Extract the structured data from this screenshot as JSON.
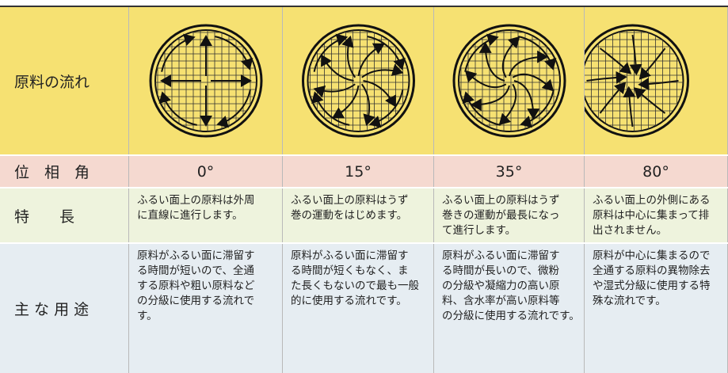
{
  "table": {
    "flow": {
      "label": "原料の流れ"
    },
    "phase": {
      "label": "位　相　角",
      "values": [
        "0°",
        "15°",
        "35°",
        "80°"
      ]
    },
    "feature": {
      "label": "特　　長",
      "values": [
        [
          "ふるい面上の原料は外周",
          "に直線に進行します。"
        ],
        [
          "ふるい面上の原料はうず",
          "巻の運動をはじめます。"
        ],
        [
          "ふるい面上の原料はうず",
          "巻きの運動が最長になっ",
          "て進行します。"
        ],
        [
          "ふるい面上の外側にある",
          "原料は中心に集まって排",
          "出されません。"
        ]
      ]
    },
    "usage": {
      "label": "主 な 用 途",
      "values": [
        [
          "原料がふるい面に滞留す",
          "る時間が短いので、全通",
          "する原料や粗い原料など",
          "の分級に使用する流れで",
          "す。"
        ],
        [
          "原料がふるい面に滞留す",
          "る時間が短くもなく、ま",
          "た長くもないので最も一般",
          "的に使用する流れです。"
        ],
        [
          "原料がふるい面に滞留す",
          "る時間が長いので、微粉",
          "の分級や凝縮力の高い原",
          "料、含水率が高い原料等",
          "の分級に使用する流れです。"
        ],
        [
          "原料が中心に集まるので",
          "全通する原料の異物除去",
          "や湿式分級に使用する特",
          "殊な流れです。"
        ]
      ]
    }
  }
}
